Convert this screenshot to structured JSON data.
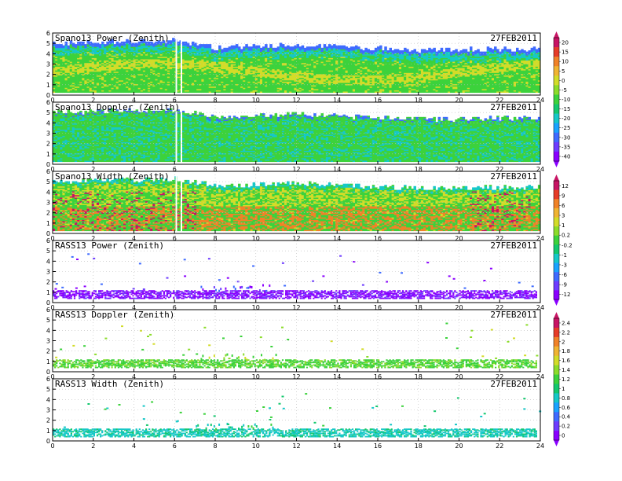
{
  "figure": {
    "background": "#ffffff",
    "date": "27FEB2011",
    "x_ticks": [
      "0",
      "2",
      "4",
      "6",
      "8",
      "10",
      "12",
      "14",
      "16",
      "18",
      "20",
      "22",
      "24"
    ],
    "y_ticks": [
      "0",
      "1",
      "2",
      "3",
      "4",
      "5",
      "6"
    ]
  },
  "colormaps": {
    "power": [
      "#8a00ff",
      "#6e3cff",
      "#3f6bff",
      "#1aa3ff",
      "#16c8c8",
      "#14c86e",
      "#3cd23c",
      "#8cdc2a",
      "#d2dc28",
      "#f0b432",
      "#f08228",
      "#e63c28",
      "#c81464"
    ],
    "width": [
      "#8a00ff",
      "#6e3cff",
      "#3f6bff",
      "#1aa3ff",
      "#16c8c8",
      "#14c86e",
      "#3cd23c",
      "#8cdc2a",
      "#d2dc28",
      "#f0b432",
      "#f08228",
      "#e63c28",
      "#c81464"
    ],
    "rass": [
      "#8a00ff",
      "#6e3cff",
      "#3f6bff",
      "#1aa3ff",
      "#16c8c8",
      "#14c86e",
      "#3cd23c",
      "#8cdc2a",
      "#d2dc28",
      "#f0b432",
      "#f08228",
      "#e63c28",
      "#c81464"
    ]
  },
  "colorbars": [
    {
      "id": "cb-power-doppler",
      "labels": [
        "20",
        "15",
        "10",
        "5",
        "0",
        "-5",
        "-10",
        "-15",
        "-20",
        "-25",
        "-30",
        "-35",
        "-40"
      ]
    },
    {
      "id": "cb-width-rass-power",
      "labels": [
        "12",
        "9",
        "6",
        "3",
        "1",
        "0.2",
        "-0.2",
        "-1",
        "-3",
        "-6",
        "-9",
        "-12"
      ]
    },
    {
      "id": "cb-rass",
      "labels": [
        "2.4",
        "2.2",
        "2",
        "1.8",
        "1.6",
        "1.4",
        "1.2",
        "1",
        "0.8",
        "0.6",
        "0.4",
        "0.2",
        "0"
      ]
    }
  ],
  "chart_data": [
    {
      "type": "heatmap",
      "title": "Spano13 Power (Zenith)",
      "date": "27FEB2011",
      "xlim": [
        0,
        24
      ],
      "ylim": [
        0,
        6
      ],
      "x_tick_labels": [
        "0",
        "2",
        "4",
        "6",
        "8",
        "10",
        "12",
        "14",
        "16",
        "18",
        "20",
        "22",
        "24"
      ],
      "y_tick_labels": [
        "0",
        "1",
        "2",
        "3",
        "4",
        "5",
        "6"
      ],
      "colorbar": "cb-power-doppler",
      "approx_echo_top": [
        [
          0,
          5.0
        ],
        [
          6,
          5.2
        ],
        [
          8,
          4.5
        ],
        [
          12,
          4.8
        ],
        [
          18,
          4.3
        ],
        [
          24,
          4.4
        ]
      ],
      "dominant_colors": [
        "#3cd23c",
        "#d2dc28",
        "#16c8c8",
        "#3f6bff"
      ]
    },
    {
      "type": "heatmap",
      "title": "Spano13 Doppler (Zenith)",
      "date": "27FEB2011",
      "xlim": [
        0,
        24
      ],
      "ylim": [
        0,
        6
      ],
      "x_tick_labels": [
        "0",
        "2",
        "4",
        "6",
        "8",
        "10",
        "12",
        "14",
        "16",
        "18",
        "20",
        "22",
        "24"
      ],
      "y_tick_labels": [
        "0",
        "1",
        "2",
        "3",
        "4",
        "5",
        "6"
      ],
      "colorbar": "cb-power-doppler",
      "approx_echo_top": [
        [
          0,
          5.0
        ],
        [
          6,
          5.2
        ],
        [
          8,
          4.5
        ],
        [
          12,
          4.8
        ],
        [
          18,
          4.3
        ],
        [
          24,
          4.4
        ]
      ],
      "dominant_colors": [
        "#3cd23c",
        "#16c8c8"
      ]
    },
    {
      "type": "heatmap",
      "title": "Spano13 Width (Zenith)",
      "date": "27FEB2011",
      "xlim": [
        0,
        24
      ],
      "ylim": [
        0,
        6
      ],
      "x_tick_labels": [
        "0",
        "2",
        "4",
        "6",
        "8",
        "10",
        "12",
        "14",
        "16",
        "18",
        "20",
        "22",
        "24"
      ],
      "y_tick_labels": [
        "0",
        "1",
        "2",
        "3",
        "4",
        "5",
        "6"
      ],
      "colorbar": "cb-width-rass-power",
      "approx_echo_top": [
        [
          0,
          5.0
        ],
        [
          6,
          5.2
        ],
        [
          8,
          4.5
        ],
        [
          12,
          4.8
        ],
        [
          18,
          4.3
        ],
        [
          24,
          4.4
        ]
      ],
      "dominant_colors": [
        "#d2dc28",
        "#3cd23c",
        "#f08228",
        "#16c8c8",
        "#c81464"
      ]
    },
    {
      "type": "heatmap",
      "title": "RASS13 Power (Zenith)",
      "date": "27FEB2011",
      "xlim": [
        0,
        24
      ],
      "ylim": [
        0,
        6
      ],
      "x_tick_labels": [
        "0",
        "2",
        "4",
        "6",
        "8",
        "10",
        "12",
        "14",
        "16",
        "18",
        "20",
        "22",
        "24"
      ],
      "y_tick_labels": [
        "0",
        "1",
        "2",
        "3",
        "4",
        "5",
        "6"
      ],
      "colorbar": "cb-width-rass-power",
      "approx_layer": [
        0.4,
        1.2
      ],
      "dominant_colors": [
        "#8a00ff",
        "#6e3cff",
        "#3f6bff"
      ]
    },
    {
      "type": "heatmap",
      "title": "RASS13 Doppler (Zenith)",
      "date": "27FEB2011",
      "xlim": [
        0,
        24
      ],
      "ylim": [
        0,
        6
      ],
      "x_tick_labels": [
        "0",
        "2",
        "4",
        "6",
        "8",
        "10",
        "12",
        "14",
        "16",
        "18",
        "20",
        "22",
        "24"
      ],
      "y_tick_labels": [
        "0",
        "1",
        "2",
        "3",
        "4",
        "5",
        "6"
      ],
      "colorbar": "cb-rass",
      "approx_layer": [
        0.4,
        1.2
      ],
      "dominant_colors": [
        "#3cd23c",
        "#8cdc2a",
        "#d2dc28"
      ]
    },
    {
      "type": "heatmap",
      "title": "RASS13 Width (Zenith)",
      "date": "27FEB2011",
      "xlim": [
        0,
        24
      ],
      "ylim": [
        0,
        6
      ],
      "x_tick_labels": [
        "0",
        "2",
        "4",
        "6",
        "8",
        "10",
        "12",
        "14",
        "16",
        "18",
        "20",
        "22",
        "24"
      ],
      "y_tick_labels": [
        "0",
        "1",
        "2",
        "3",
        "4",
        "5",
        "6"
      ],
      "colorbar": "cb-rass",
      "approx_layer": [
        0.4,
        1.2
      ],
      "dominant_colors": [
        "#16c8c8",
        "#14c86e",
        "#3cd23c"
      ]
    }
  ]
}
